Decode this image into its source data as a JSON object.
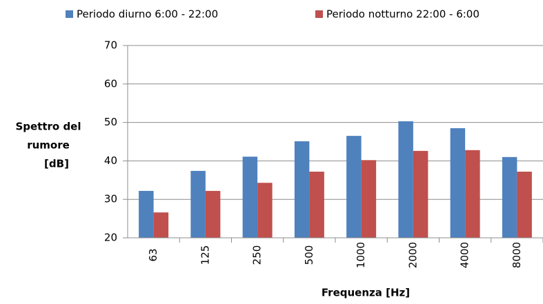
{
  "chart_data": {
    "type": "bar",
    "ylabel": [
      "Spettro del",
      "rumore",
      "[dB]"
    ],
    "xlabel": "Frequenza  [Hz]",
    "categories": [
      "63",
      "125",
      "250",
      "500",
      "1000",
      "2000",
      "4000",
      "8000"
    ],
    "series": [
      {
        "name": "Periodo diurno 6:00 - 22:00",
        "color": "#4f81bd",
        "values": [
          32.2,
          37.4,
          41.1,
          45.1,
          46.5,
          50.3,
          48.5,
          41.0
        ]
      },
      {
        "name": "Periodo notturno 22:00 - 6:00",
        "color": "#c0504d",
        "values": [
          26.6,
          32.2,
          34.3,
          37.2,
          40.2,
          42.6,
          42.8,
          37.2
        ]
      }
    ],
    "ylim": [
      20,
      70
    ],
    "yticks": [
      20,
      30,
      40,
      50,
      60,
      70
    ],
    "grid": true,
    "legend": "top"
  }
}
